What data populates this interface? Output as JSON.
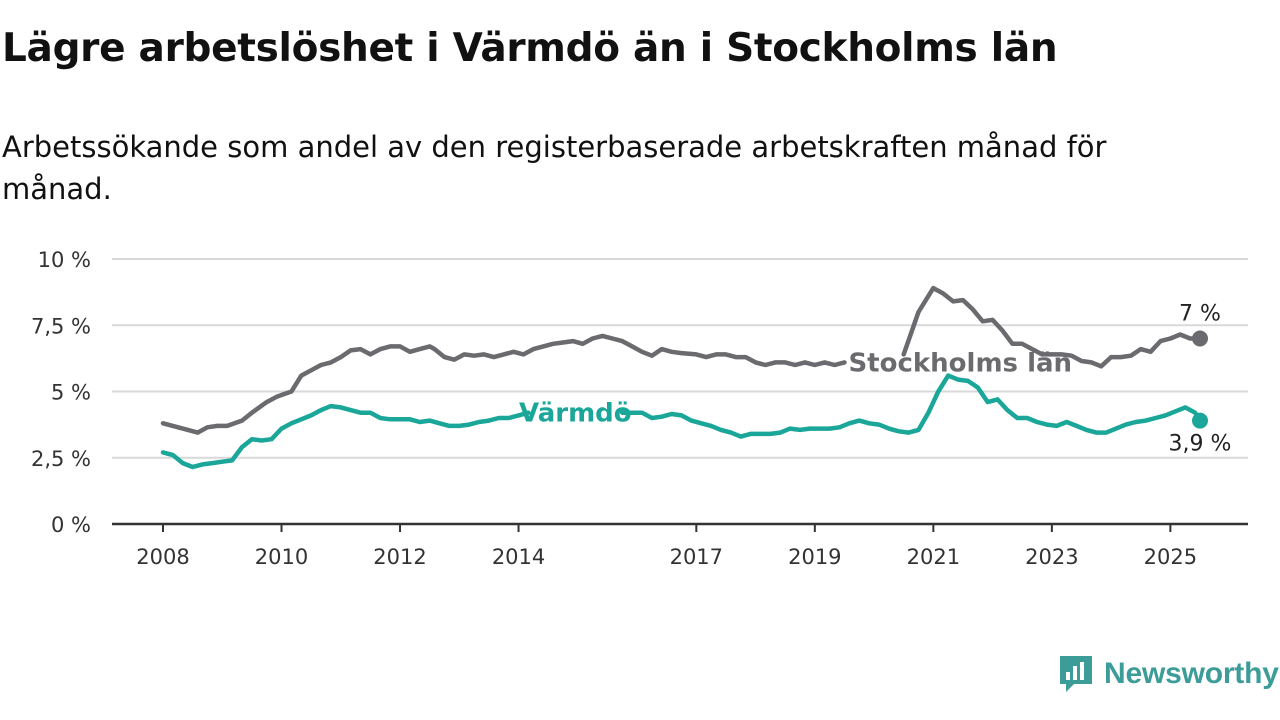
{
  "colors": {
    "stockholm": "#6b6a6e",
    "varmdo": "#1aa698",
    "grid": "#d9d9d9",
    "axis": "#333333",
    "brand": "#3c9c98"
  },
  "brand": {
    "name": "Newsworthy",
    "icon": "newsworthy-logo-icon"
  },
  "chart_data": {
    "type": "line",
    "title": "Lägre arbetslöshet i Värmdö än i Stockholms län",
    "subtitle": "Arbetssökande som andel av den registerbaserade arbetskraften månad för månad.",
    "ylim": [
      0,
      10
    ],
    "yticks": [
      0,
      2.5,
      5,
      7.5,
      10
    ],
    "ytick_labels": [
      "0 %",
      "2,5 %",
      "5 %",
      "7,5 %",
      "10 %"
    ],
    "xtick_labels": [
      "2008",
      "2010",
      "2012",
      "2014",
      "2017",
      "2019",
      "2021",
      "2023",
      "2025"
    ],
    "xticks": [
      "2008-01",
      "2010-01",
      "2012-01",
      "2014-01",
      "2017-01",
      "2019-01",
      "2021-01",
      "2023-01",
      "2025-01"
    ],
    "grid": true,
    "series": [
      {
        "name": "Stockholms län",
        "end_label": "7 %",
        "segments": [
          [
            [
              "2008-01",
              3.8
            ],
            [
              "2008-05",
              3.6
            ],
            [
              "2008-08",
              3.45
            ],
            [
              "2008-10",
              3.65
            ],
            [
              "2008-12",
              3.7
            ],
            [
              "2009-02",
              3.7
            ],
            [
              "2009-05",
              3.9
            ],
            [
              "2009-07",
              4.2
            ],
            [
              "2009-10",
              4.6
            ],
            [
              "2009-12",
              4.8
            ],
            [
              "2010-03",
              5.0
            ],
            [
              "2010-05",
              5.6
            ],
            [
              "2010-07",
              5.8
            ],
            [
              "2010-09",
              6.0
            ],
            [
              "2010-11",
              6.1
            ],
            [
              "2011-01",
              6.3
            ],
            [
              "2011-03",
              6.55
            ],
            [
              "2011-05",
              6.6
            ],
            [
              "2011-07",
              6.4
            ],
            [
              "2011-09",
              6.6
            ],
            [
              "2011-11",
              6.7
            ],
            [
              "2012-01",
              6.7
            ],
            [
              "2012-03",
              6.5
            ],
            [
              "2012-05",
              6.6
            ],
            [
              "2012-07",
              6.7
            ],
            [
              "2012-08",
              6.6
            ],
            [
              "2012-10",
              6.3
            ],
            [
              "2012-12",
              6.2
            ],
            [
              "2013-02",
              6.4
            ],
            [
              "2013-04",
              6.35
            ],
            [
              "2013-06",
              6.4
            ],
            [
              "2013-08",
              6.3
            ],
            [
              "2013-10",
              6.4
            ],
            [
              "2013-12",
              6.5
            ],
            [
              "2014-02",
              6.4
            ],
            [
              "2014-04",
              6.6
            ],
            [
              "2014-06",
              6.7
            ],
            [
              "2014-08",
              6.8
            ],
            [
              "2014-10",
              6.85
            ],
            [
              "2014-12",
              6.9
            ],
            [
              "2015-02",
              6.8
            ],
            [
              "2015-04",
              7.0
            ],
            [
              "2015-06",
              7.1
            ],
            [
              "2015-08",
              7.0
            ],
            [
              "2015-10",
              6.9
            ],
            [
              "2015-12",
              6.7
            ],
            [
              "2016-02",
              6.5
            ],
            [
              "2016-04",
              6.35
            ],
            [
              "2016-06",
              6.6
            ],
            [
              "2016-08",
              6.5
            ],
            [
              "2016-10",
              6.45
            ],
            [
              "2017-01",
              6.4
            ],
            [
              "2017-03",
              6.3
            ],
            [
              "2017-05",
              6.4
            ],
            [
              "2017-07",
              6.4
            ],
            [
              "2017-09",
              6.3
            ],
            [
              "2017-11",
              6.3
            ],
            [
              "2018-01",
              6.1
            ],
            [
              "2018-03",
              6.0
            ],
            [
              "2018-05",
              6.1
            ],
            [
              "2018-07",
              6.1
            ],
            [
              "2018-09",
              6.0
            ],
            [
              "2018-11",
              6.1
            ],
            [
              "2019-01",
              6.0
            ],
            [
              "2019-03",
              6.1
            ],
            [
              "2019-05",
              6.0
            ],
            [
              "2019-07",
              6.1
            ]
          ],
          [
            [
              "2020-07",
              6.4
            ],
            [
              "2020-10",
              8.0
            ],
            [
              "2021-01",
              8.9
            ],
            [
              "2021-03",
              8.7
            ],
            [
              "2021-05",
              8.4
            ],
            [
              "2021-07",
              8.45
            ],
            [
              "2021-09",
              8.1
            ],
            [
              "2021-11",
              7.65
            ],
            [
              "2022-01",
              7.7
            ],
            [
              "2022-03",
              7.3
            ],
            [
              "2022-05",
              6.8
            ],
            [
              "2022-07",
              6.8
            ],
            [
              "2022-09",
              6.6
            ],
            [
              "2022-11",
              6.4
            ],
            [
              "2023-01",
              6.4
            ],
            [
              "2023-03",
              6.4
            ],
            [
              "2023-05",
              6.35
            ],
            [
              "2023-07",
              6.15
            ],
            [
              "2023-09",
              6.1
            ],
            [
              "2023-11",
              5.95
            ],
            [
              "2024-01",
              6.3
            ],
            [
              "2024-03",
              6.3
            ],
            [
              "2024-05",
              6.35
            ],
            [
              "2024-07",
              6.6
            ],
            [
              "2024-09",
              6.5
            ],
            [
              "2024-11",
              6.9
            ],
            [
              "2025-01",
              7.0
            ],
            [
              "2025-03",
              7.15
            ],
            [
              "2025-05",
              7.0
            ],
            [
              "2025-07",
              7.0
            ]
          ]
        ]
      },
      {
        "name": "Värmdö",
        "end_label": "3,9 %",
        "segments": [
          [
            [
              "2008-01",
              2.7
            ],
            [
              "2008-03",
              2.6
            ],
            [
              "2008-05",
              2.3
            ],
            [
              "2008-07",
              2.15
            ],
            [
              "2008-09",
              2.25
            ],
            [
              "2008-11",
              2.3
            ],
            [
              "2009-01",
              2.35
            ],
            [
              "2009-03",
              2.4
            ],
            [
              "2009-05",
              2.9
            ],
            [
              "2009-07",
              3.2
            ],
            [
              "2009-09",
              3.15
            ],
            [
              "2009-11",
              3.2
            ],
            [
              "2010-01",
              3.6
            ],
            [
              "2010-03",
              3.8
            ],
            [
              "2010-05",
              3.95
            ],
            [
              "2010-07",
              4.1
            ],
            [
              "2010-09",
              4.3
            ],
            [
              "2010-11",
              4.45
            ],
            [
              "2011-01",
              4.4
            ],
            [
              "2011-03",
              4.3
            ],
            [
              "2011-05",
              4.2
            ],
            [
              "2011-07",
              4.2
            ],
            [
              "2011-09",
              4.0
            ],
            [
              "2011-11",
              3.95
            ],
            [
              "2012-01",
              3.95
            ],
            [
              "2012-03",
              3.95
            ],
            [
              "2012-05",
              3.85
            ],
            [
              "2012-07",
              3.9
            ],
            [
              "2012-09",
              3.8
            ],
            [
              "2012-11",
              3.7
            ],
            [
              "2013-01",
              3.7
            ],
            [
              "2013-03",
              3.75
            ],
            [
              "2013-05",
              3.85
            ],
            [
              "2013-07",
              3.9
            ],
            [
              "2013-09",
              4.0
            ],
            [
              "2013-11",
              4.0
            ],
            [
              "2014-01",
              4.1
            ],
            [
              "2014-03",
              4.2
            ]
          ],
          [
            [
              "2015-10",
              4.2
            ],
            [
              "2015-12",
              4.2
            ],
            [
              "2016-02",
              4.2
            ],
            [
              "2016-04",
              4.0
            ],
            [
              "2016-06",
              4.05
            ],
            [
              "2016-08",
              4.15
            ],
            [
              "2016-10",
              4.1
            ],
            [
              "2016-12",
              3.9
            ],
            [
              "2017-02",
              3.8
            ],
            [
              "2017-04",
              3.7
            ],
            [
              "2017-06",
              3.55
            ],
            [
              "2017-08",
              3.45
            ],
            [
              "2017-10",
              3.3
            ],
            [
              "2017-12",
              3.4
            ],
            [
              "2018-02",
              3.4
            ],
            [
              "2018-04",
              3.4
            ],
            [
              "2018-06",
              3.45
            ],
            [
              "2018-08",
              3.6
            ],
            [
              "2018-10",
              3.55
            ],
            [
              "2018-12",
              3.6
            ],
            [
              "2019-02",
              3.6
            ],
            [
              "2019-04",
              3.6
            ],
            [
              "2019-06",
              3.65
            ],
            [
              "2019-08",
              3.8
            ],
            [
              "2019-10",
              3.9
            ],
            [
              "2019-12",
              3.8
            ],
            [
              "2020-02",
              3.75
            ],
            [
              "2020-04",
              3.6
            ],
            [
              "2020-06",
              3.5
            ],
            [
              "2020-08",
              3.45
            ],
            [
              "2020-10",
              3.55
            ],
            [
              "2020-12",
              4.2
            ],
            [
              "2021-02",
              5.0
            ],
            [
              "2021-04",
              5.6
            ],
            [
              "2021-06",
              5.45
            ],
            [
              "2021-08",
              5.4
            ],
            [
              "2021-10",
              5.15
            ],
            [
              "2021-12",
              4.6
            ],
            [
              "2022-02",
              4.7
            ],
            [
              "2022-04",
              4.3
            ],
            [
              "2022-06",
              4.0
            ],
            [
              "2022-08",
              4.0
            ],
            [
              "2022-10",
              3.85
            ],
            [
              "2022-12",
              3.75
            ],
            [
              "2023-02",
              3.7
            ],
            [
              "2023-04",
              3.85
            ],
            [
              "2023-06",
              3.7
            ],
            [
              "2023-08",
              3.55
            ],
            [
              "2023-10",
              3.45
            ],
            [
              "2023-12",
              3.45
            ],
            [
              "2024-02",
              3.6
            ],
            [
              "2024-04",
              3.75
            ],
            [
              "2024-06",
              3.85
            ],
            [
              "2024-08",
              3.9
            ],
            [
              "2024-10",
              4.0
            ],
            [
              "2024-12",
              4.1
            ],
            [
              "2025-02",
              4.25
            ],
            [
              "2025-04",
              4.4
            ],
            [
              "2025-06",
              4.2
            ],
            [
              "2025-07",
              3.9
            ]
          ]
        ]
      }
    ]
  }
}
